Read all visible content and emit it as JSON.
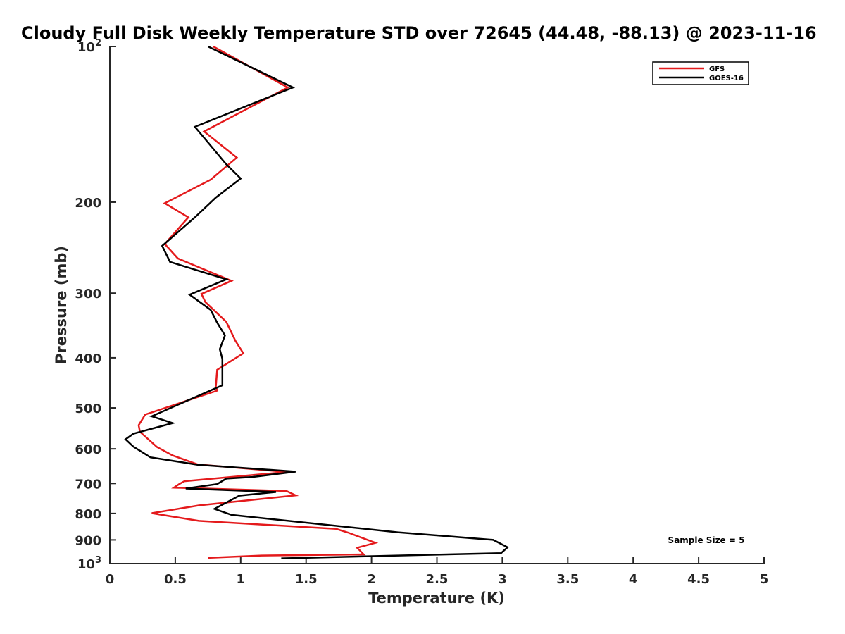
{
  "chart_data": {
    "type": "line",
    "title": "Cloudy Full Disk Weekly Temperature STD over 72645 (44.48, -88.13) @ 2023-11-16",
    "xlabel": "Temperature (K)",
    "ylabel": "Pressure (mb)",
    "xlim": [
      0,
      5
    ],
    "ylim": [
      1000,
      100
    ],
    "yscale": "log",
    "xticks": [
      0,
      0.5,
      1,
      1.5,
      2,
      2.5,
      3,
      3.5,
      4,
      4.5,
      5
    ],
    "xtick_labels": [
      "0",
      "0.5",
      "1",
      "1.5",
      "2",
      "2.5",
      "3",
      "3.5",
      "4",
      "4.5",
      "5"
    ],
    "yticks": [
      {
        "value": 100,
        "base": "10",
        "exp": "2"
      },
      {
        "value": 200,
        "label": "200"
      },
      {
        "value": 300,
        "label": "300"
      },
      {
        "value": 400,
        "label": "400"
      },
      {
        "value": 500,
        "label": "500"
      },
      {
        "value": 600,
        "label": "600"
      },
      {
        "value": 700,
        "label": "700"
      },
      {
        "value": 800,
        "label": "800"
      },
      {
        "value": 900,
        "label": "900"
      },
      {
        "value": 1000,
        "base": "10",
        "exp": "3"
      }
    ],
    "grid": false,
    "legend_position": "top-right",
    "annotation": "Sample Size = 5",
    "series": [
      {
        "name": "GFS",
        "color": "#e41a1c",
        "x": [
          0.79,
          1.36,
          0.72,
          0.97,
          0.77,
          0.42,
          0.6,
          0.42,
          0.52,
          0.93,
          0.7,
          0.73,
          0.89,
          0.96,
          1.02,
          0.82,
          0.81,
          0.82,
          0.27,
          0.22,
          0.23,
          0.36,
          0.48,
          0.67,
          1.35,
          0.57,
          0.53,
          0.49,
          1.35,
          1.42,
          0.68,
          0.32,
          0.68,
          1.73,
          1.82,
          2.03,
          1.89,
          1.94,
          1.16,
          0.75
        ],
        "y": [
          100,
          120,
          146,
          164,
          181,
          201,
          214,
          241,
          257,
          284,
          301,
          312,
          341,
          371,
          392,
          422,
          455,
          463,
          515,
          540,
          556,
          595,
          618,
          643,
          665,
          693,
          702,
          713,
          724,
          738,
          772,
          799,
          827,
          857,
          871,
          912,
          932,
          960,
          965,
          975
        ]
      },
      {
        "name": "GOES-16",
        "color": "#000000",
        "x": [
          0.75,
          1.4,
          0.65,
          0.89,
          1.0,
          0.81,
          0.65,
          0.4,
          0.46,
          0.89,
          0.61,
          0.77,
          0.82,
          0.88,
          0.84,
          0.86,
          0.86,
          0.32,
          0.48,
          0.18,
          0.12,
          0.18,
          0.31,
          0.67,
          1.42,
          1.09,
          0.89,
          0.82,
          0.58,
          1.27,
          0.99,
          0.8,
          0.93,
          2.2,
          2.93,
          3.04,
          2.99,
          2.4,
          1.31
        ],
        "y": [
          100,
          120,
          143,
          169,
          180,
          196,
          214,
          243,
          261,
          282,
          302,
          323,
          342,
          362,
          385,
          402,
          452,
          519,
          535,
          561,
          575,
          594,
          623,
          644,
          664,
          680,
          685,
          702,
          716,
          727,
          739,
          784,
          805,
          870,
          900,
          930,
          955,
          962,
          977
        ]
      }
    ]
  }
}
